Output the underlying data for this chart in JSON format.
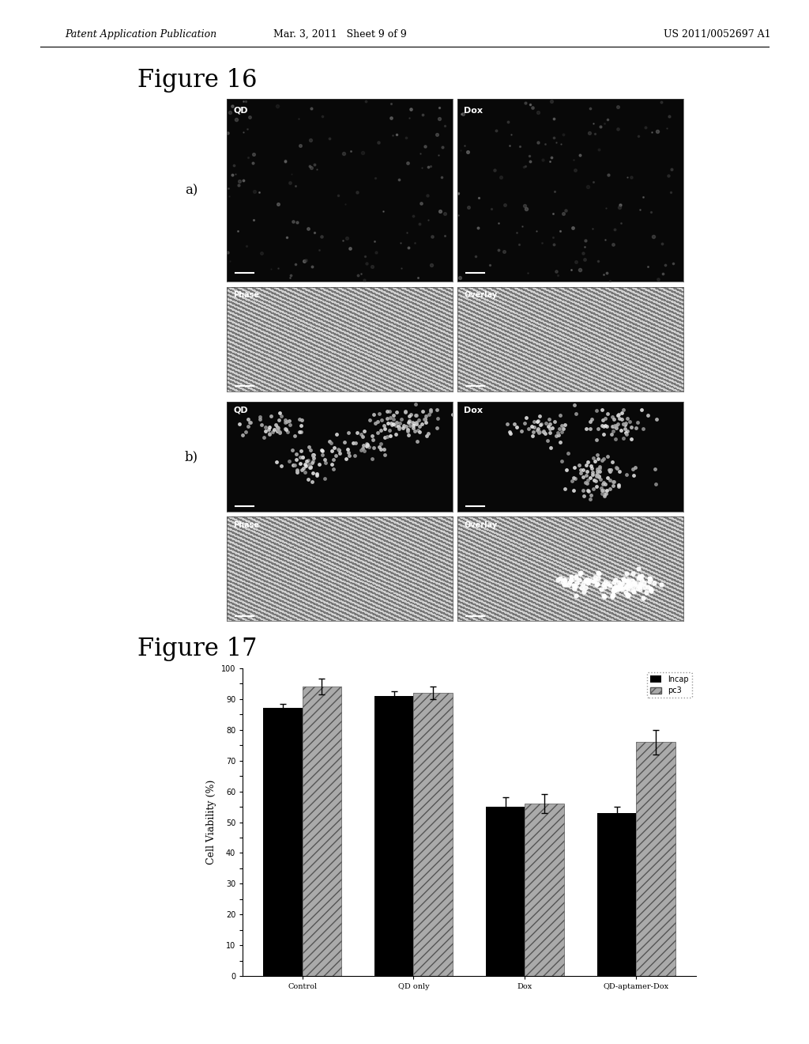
{
  "header_left": "Patent Application Publication",
  "header_mid": "Mar. 3, 2011   Sheet 9 of 9",
  "header_right": "US 2011/0052697 A1",
  "fig16_title": "Figure 16",
  "fig17_title": "Figure 17",
  "fig16_a_label": "a)",
  "fig16_b_label": "b)",
  "bar_categories": [
    "Control",
    "QD only",
    "Dox",
    "QD-aptamer-Dox"
  ],
  "lncap_values": [
    87,
    91,
    55,
    53
  ],
  "pc3_values": [
    94,
    92,
    56,
    76
  ],
  "lncap_errors": [
    1.5,
    1.5,
    3,
    2
  ],
  "pc3_errors": [
    2.5,
    2,
    3,
    4
  ],
  "ylabel": "Cell Viability (%)",
  "ylim": [
    0,
    100
  ],
  "yticks": [
    0,
    10,
    20,
    30,
    40,
    50,
    60,
    70,
    80,
    90,
    100
  ],
  "legend_lncap": "lncap",
  "legend_pc3": "pc3",
  "lncap_color": "#000000",
  "background_color": "#ffffff",
  "bar_width": 0.35,
  "title_fontsize": 22,
  "header_fontsize": 9,
  "tick_fontsize": 7,
  "label_fontsize": 9
}
